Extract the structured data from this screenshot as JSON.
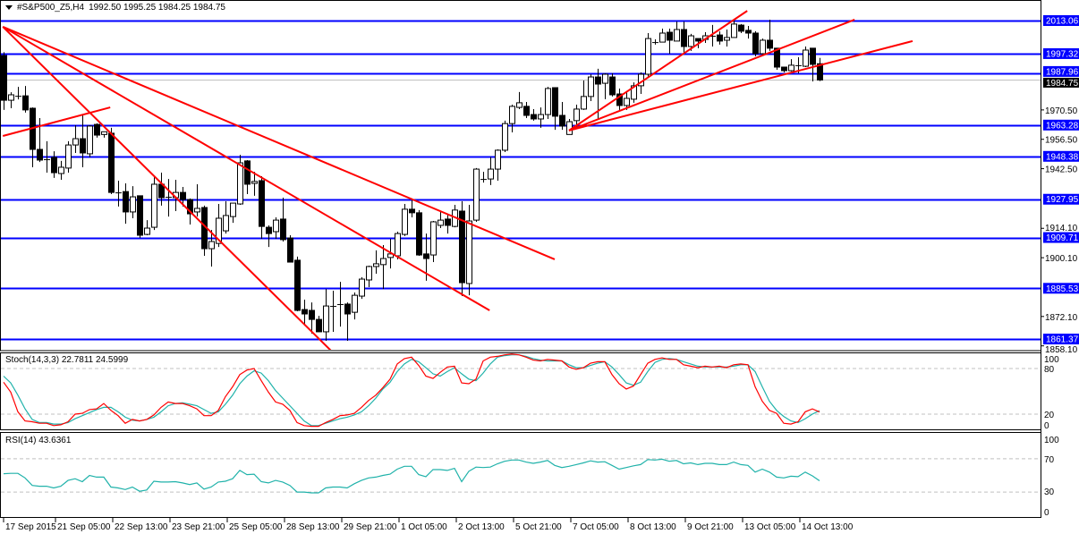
{
  "header": {
    "symbol": "#S&P500_Z5,H4",
    "ohlc": "1992.50 1995.25 1984.25 1984.75",
    "menu_icon": "triangle-down-icon"
  },
  "colors": {
    "level_line": "#0000ff",
    "trendline": "#ff0000",
    "stoch_main": "#ff0000",
    "stoch_signal": "#20b2aa",
    "rsi": "#20b2aa",
    "grid_level": "#c0c0c0",
    "current_price_line": "#c0c0c0"
  },
  "price_axis": {
    "labels": [
      "1970.50",
      "1956.50",
      "1942.50",
      "1914.10",
      "1900.10",
      "1872.10",
      "1858.10"
    ],
    "current_price": "1984.75"
  },
  "levels": [
    "2013.06",
    "1997.32",
    "1987.96",
    "1963.28",
    "1948.38",
    "1927.95",
    "1909.71",
    "1885.53",
    "1861.37"
  ],
  "time_axis": [
    {
      "label": "17 Sep 2015",
      "bar": 0
    },
    {
      "label": "21 Sep 05:00",
      "bar": 7
    },
    {
      "label": "22 Sep 13:00",
      "bar": 15
    },
    {
      "label": "23 Sep 21:00",
      "bar": 23
    },
    {
      "label": "25 Sep 05:00",
      "bar": 31
    },
    {
      "label": "28 Sep 13:00",
      "bar": 39
    },
    {
      "label": "29 Sep 21:00",
      "bar": 47
    },
    {
      "label": "1 Oct 05:00",
      "bar": 55
    },
    {
      "label": "2 Oct 13:00",
      "bar": 63
    },
    {
      "label": "5 Oct 21:00",
      "bar": 71
    },
    {
      "label": "7 Oct 05:00",
      "bar": 79
    },
    {
      "label": "8 Oct 13:00",
      "bar": 87
    },
    {
      "label": "9 Oct 21:00",
      "bar": 95
    },
    {
      "label": "13 Oct 05:00",
      "bar": 103
    },
    {
      "label": "14 Oct 13:00",
      "bar": 111
    }
  ],
  "stoch": {
    "label": "Stoch(14,3,3) 22.7811 24.5999",
    "axis_labels": [
      "100",
      "80",
      "20",
      "0"
    ],
    "levels": [
      80,
      20
    ]
  },
  "rsi": {
    "label": "RSI(14) 43.6361",
    "axis_labels": [
      "100",
      "70",
      "30",
      "0"
    ],
    "levels": [
      70,
      30
    ]
  },
  "chart_data": {
    "type": "candlestick",
    "ohlc": [
      [
        1996.4,
        1998,
        1970.5,
        1975.1
      ],
      [
        1975.1,
        1978.9,
        1971.3,
        1977.7
      ],
      [
        1977.2,
        1981.5,
        1975.5,
        1977.2
      ],
      [
        1977.2,
        1981.9,
        1969.2,
        1970.5
      ],
      [
        1971.3,
        1971.7,
        1943.2,
        1951.7
      ],
      [
        1951.7,
        1966.6,
        1945.7,
        1946.6
      ],
      [
        1947,
        1955.6,
        1940.6,
        1947
      ],
      [
        1947.9,
        1950.8,
        1938.1,
        1940.6
      ],
      [
        1940.2,
        1946.2,
        1937.2,
        1943.2
      ],
      [
        1942.8,
        1955.6,
        1940.6,
        1953.8
      ],
      [
        1953.8,
        1963.2,
        1950,
        1956.8
      ],
      [
        1956.8,
        1967.9,
        1943.2,
        1950
      ],
      [
        1949.6,
        1963.2,
        1947.9,
        1962.8
      ],
      [
        1963.6,
        1964.1,
        1957.3,
        1958.5
      ],
      [
        1958.8,
        1960.1,
        1957.3,
        1960.1
      ],
      [
        1959.4,
        1962,
        1930.4,
        1931.2
      ],
      [
        1931.2,
        1936.8,
        1924.5,
        1931.2
      ],
      [
        1931.6,
        1935.5,
        1916.3,
        1921.9
      ],
      [
        1921.9,
        1934.2,
        1918.9,
        1929.1
      ],
      [
        1929.6,
        1929.6,
        1909.5,
        1910.8
      ],
      [
        1911.2,
        1918,
        1910.8,
        1914.2
      ],
      [
        1914.6,
        1938.5,
        1913.3,
        1935.1
      ],
      [
        1935.1,
        1940.6,
        1924.9,
        1928.7
      ],
      [
        1929.1,
        1937.6,
        1919.7,
        1929.1
      ],
      [
        1928.7,
        1937.2,
        1922.3,
        1931.2
      ],
      [
        1931.2,
        1933.8,
        1924.5,
        1927.8
      ],
      [
        1927.8,
        1928.3,
        1915.9,
        1921
      ],
      [
        1921.9,
        1935.1,
        1919.7,
        1923.6
      ],
      [
        1924,
        1924.9,
        1901,
        1904.4
      ],
      [
        1904.4,
        1913.3,
        1895.9,
        1907.8
      ],
      [
        1906.9,
        1925.7,
        1905.2,
        1918.9
      ],
      [
        1912.9,
        1927,
        1911.6,
        1920.2
      ],
      [
        1919.7,
        1926.1,
        1916.7,
        1926.1
      ],
      [
        1925.7,
        1949.1,
        1925.3,
        1945.3
      ],
      [
        1946.2,
        1946.6,
        1930.4,
        1935.1
      ],
      [
        1935.5,
        1941,
        1929.6,
        1936.4
      ],
      [
        1936.8,
        1938.9,
        1909.1,
        1915
      ],
      [
        1914.6,
        1915.5,
        1905.2,
        1911.6
      ],
      [
        1912.5,
        1919.3,
        1909.1,
        1918
      ],
      [
        1918.5,
        1928.7,
        1907.8,
        1908.7
      ],
      [
        1909.5,
        1910.8,
        1898,
        1898
      ],
      [
        1898.9,
        1900.6,
        1874.6,
        1875
      ],
      [
        1875.4,
        1880.1,
        1867.8,
        1873.3
      ],
      [
        1875,
        1878.8,
        1864,
        1870.7
      ],
      [
        1870.7,
        1872.4,
        1864.8,
        1864.8
      ],
      [
        1864.8,
        1885.2,
        1860.5,
        1877.1
      ],
      [
        1877.1,
        1884.4,
        1864.8,
        1877.1
      ],
      [
        1878,
        1888.6,
        1867.3,
        1878
      ],
      [
        1878,
        1878.8,
        1860.5,
        1873.3
      ],
      [
        1874.1,
        1883.5,
        1870.7,
        1882.2
      ],
      [
        1881.8,
        1890.8,
        1880.5,
        1889.9
      ],
      [
        1889.5,
        1896.3,
        1886.1,
        1895.9
      ],
      [
        1895.9,
        1903.6,
        1892.5,
        1897.2
      ],
      [
        1896.8,
        1906.1,
        1885.2,
        1899.7
      ],
      [
        1900.2,
        1909.1,
        1895,
        1901.9
      ],
      [
        1901,
        1912.5,
        1899.3,
        1911.6
      ],
      [
        1911.2,
        1925.7,
        1910.4,
        1923.2
      ],
      [
        1923.2,
        1928.3,
        1919.3,
        1921.5
      ],
      [
        1921.5,
        1922.8,
        1901,
        1901.4
      ],
      [
        1901.9,
        1911.6,
        1889.1,
        1899.7
      ],
      [
        1901.4,
        1917.6,
        1898,
        1917.2
      ],
      [
        1915.5,
        1922.3,
        1914.2,
        1918
      ],
      [
        1918.5,
        1920.6,
        1911.6,
        1915.5
      ],
      [
        1915,
        1925.3,
        1914.6,
        1922.8
      ],
      [
        1922.3,
        1927,
        1881.8,
        1888.2
      ],
      [
        1887.8,
        1925.3,
        1882.2,
        1917.6
      ],
      [
        1918,
        1942.8,
        1917.2,
        1942.3
      ],
      [
        1937.6,
        1941,
        1935.9,
        1937.6
      ],
      [
        1937.6,
        1948.1,
        1934.7,
        1942.3
      ],
      [
        1942.3,
        1951.7,
        1936.8,
        1951.3
      ],
      [
        1951.3,
        1965.4,
        1950.4,
        1964
      ],
      [
        1964,
        1973,
        1959.8,
        1972.2
      ],
      [
        1971.7,
        1979,
        1970.9,
        1973.9
      ],
      [
        1972.2,
        1974.3,
        1966.6,
        1967.9
      ],
      [
        1968.3,
        1970.9,
        1965.4,
        1966.2
      ],
      [
        1966.2,
        1971.7,
        1962,
        1968.3
      ],
      [
        1968.3,
        1981.5,
        1966.2,
        1980.7
      ],
      [
        1981.1,
        1981.1,
        1961,
        1967.5
      ],
      [
        1967.9,
        1974.3,
        1961,
        1962.8
      ],
      [
        1958.8,
        1966.2,
        1958.8,
        1964.9
      ],
      [
        1965.4,
        1973,
        1962.4,
        1970.9
      ],
      [
        1970.9,
        1984.5,
        1970.5,
        1976.9
      ],
      [
        1976.9,
        1987.5,
        1974.7,
        1986.2
      ],
      [
        1986.2,
        1990.1,
        1966.2,
        1982.8
      ],
      [
        1983.2,
        1987.9,
        1975.6,
        1987.5
      ],
      [
        1986.2,
        1987.9,
        1976.9,
        1977.7
      ],
      [
        1978.1,
        1980.7,
        1970.5,
        1972.6
      ],
      [
        1972.6,
        1979.4,
        1970.5,
        1976
      ],
      [
        1975.6,
        1983.6,
        1973.9,
        1982
      ],
      [
        1982,
        1988.4,
        1978.1,
        1987.5
      ],
      [
        1987.5,
        2007.1,
        1985.8,
        2004.5
      ],
      [
        2002.8,
        2004.1,
        2001.6,
        2002.8
      ],
      [
        2002.8,
        2009.2,
        2002.8,
        2007.1
      ],
      [
        2007.5,
        2009.2,
        1997.3,
        2003.7
      ],
      [
        2003.3,
        2012.6,
        2003.3,
        2008.8
      ],
      [
        2008.8,
        2012.6,
        1997.3,
        2000.7
      ],
      [
        2000.7,
        2006.7,
        1998.6,
        2005.8
      ],
      [
        2004.5,
        2004.5,
        1999.9,
        2003.3
      ],
      [
        2004.1,
        2007.5,
        2002.4,
        2005.8
      ],
      [
        2005.8,
        2011,
        2000.7,
        2005.8
      ],
      [
        2006.2,
        2007.9,
        2001.6,
        2003.3
      ],
      [
        2003.7,
        2008.8,
        2000.7,
        2005
      ],
      [
        2005,
        2013.1,
        2005,
        2011.4
      ],
      [
        2010.9,
        2011.4,
        2007.1,
        2008
      ],
      [
        2008.4,
        2010.5,
        2004.5,
        2007.1
      ],
      [
        2007.1,
        2008,
        1996,
        1997.3
      ],
      [
        1997.3,
        2004.5,
        1996.4,
        2003.7
      ],
      [
        2003.7,
        2013.5,
        1998.6,
        1999.9
      ],
      [
        1999.9,
        1999.9,
        1989.6,
        1990.9
      ],
      [
        1990.9,
        1991,
        1988.4,
        1989.2
      ],
      [
        1989.2,
        1994.7,
        1988.8,
        1991.8
      ],
      [
        1991.8,
        1995.6,
        1987.9,
        1991.8
      ],
      [
        1991.3,
        2000.7,
        1990.9,
        1999
      ],
      [
        1999.9,
        1999.9,
        1984.1,
        1992.2
      ],
      [
        1992.5,
        1995.25,
        1984.25,
        1984.75
      ]
    ],
    "price_range": [
      1855.0,
      2017.0
    ],
    "trendlines": [
      {
        "from": [
          -0.1,
          2010.1
        ],
        "to": [
          45.75,
          1855.8
        ]
      },
      {
        "from": [
          -0.1,
          2010.1
        ],
        "to": [
          67.9,
          1875.0
        ]
      },
      {
        "from": [
          -0.1,
          2010.1
        ],
        "to": [
          77,
          1899.3
        ]
      },
      {
        "from": [
          -0.1,
          1958.1
        ],
        "to": [
          14.9,
          1971.7
        ]
      },
      {
        "from": [
          79,
          1960.7
        ],
        "to": [
          103.9,
          2017.7
        ]
      },
      {
        "from": [
          79,
          1960.7
        ],
        "to": [
          118.9,
          2013.5
        ]
      },
      {
        "from": [
          79,
          1960.7
        ],
        "to": [
          127,
          2003.3
        ]
      }
    ],
    "stoch_main": [
      62,
      49,
      23,
      11,
      10,
      8,
      8,
      5,
      6,
      10,
      20,
      21,
      26,
      27,
      34,
      25,
      18,
      8,
      13,
      11,
      13,
      19,
      29,
      36,
      34,
      34,
      31,
      27,
      18,
      18,
      25,
      43,
      56,
      72,
      78,
      80,
      64,
      49,
      36,
      33,
      25,
      9,
      5,
      4,
      4,
      9,
      13,
      18,
      19,
      21,
      29,
      38,
      45,
      55,
      66,
      86,
      93,
      95,
      84,
      70,
      67,
      75,
      82,
      83,
      61,
      60,
      66,
      90,
      95,
      96,
      98,
      99,
      98,
      95,
      91,
      90,
      92,
      91,
      90,
      82,
      79,
      81,
      87,
      89,
      89,
      72,
      60,
      53,
      57,
      72,
      87,
      92,
      94,
      92,
      92,
      85,
      83,
      81,
      83,
      82,
      83,
      81,
      85,
      86,
      85,
      56,
      37,
      25,
      21,
      8,
      7,
      10,
      23,
      27,
      22.78
    ],
    "stoch_signal": [
      70,
      61,
      45,
      27,
      13,
      9,
      9,
      7,
      7,
      9,
      14,
      18,
      22,
      26,
      29,
      29,
      23,
      16,
      12,
      11,
      13,
      16,
      23,
      31,
      34,
      35,
      33,
      31,
      26,
      21,
      23,
      33,
      45,
      60,
      70,
      77,
      74,
      64,
      51,
      41,
      31,
      21,
      11,
      5,
      5,
      8,
      11,
      14,
      16,
      19,
      23,
      31,
      41,
      53,
      62,
      76,
      86,
      92,
      89,
      81,
      73,
      70,
      76,
      81,
      73,
      66,
      64,
      74,
      86,
      95,
      97,
      98,
      98,
      96,
      93,
      91,
      90,
      90,
      90,
      85,
      81,
      81,
      84,
      87,
      89,
      82,
      72,
      61,
      58,
      62,
      76,
      88,
      92,
      93,
      92,
      89,
      86,
      83,
      82,
      82,
      82,
      82,
      83,
      85,
      85,
      76,
      56,
      37,
      25,
      17,
      11,
      9,
      14,
      20,
      24.6
    ],
    "rsi": [
      52,
      52.5,
      52.5,
      47,
      38,
      37,
      37,
      35,
      37,
      44,
      46,
      42.5,
      50,
      48,
      48,
      36,
      35,
      33,
      36,
      31,
      32.5,
      43,
      42,
      42,
      42.5,
      41,
      39,
      41,
      33.5,
      36,
      42,
      43,
      46,
      56,
      51,
      51.5,
      42.5,
      41,
      44,
      42,
      38,
      30,
      30,
      29,
      29,
      35,
      36,
      36,
      35,
      40,
      44,
      47,
      48,
      50,
      51.5,
      57.5,
      61,
      61,
      51,
      48.5,
      57,
      57,
      56,
      58.5,
      42.5,
      55,
      60,
      59.5,
      60,
      64,
      67,
      68.5,
      68.5,
      66,
      64.5,
      66,
      68,
      62,
      59.5,
      61,
      63,
      65,
      67.5,
      66,
      66.5,
      62,
      57.5,
      59.5,
      61.5,
      63,
      69,
      68.5,
      69.5,
      67,
      68,
      64,
      65,
      63,
      64.5,
      64.5,
      63,
      63,
      66,
      63,
      62,
      54,
      57.5,
      54,
      48,
      47,
      49,
      48.5,
      54,
      49.5,
      43.6
    ]
  }
}
